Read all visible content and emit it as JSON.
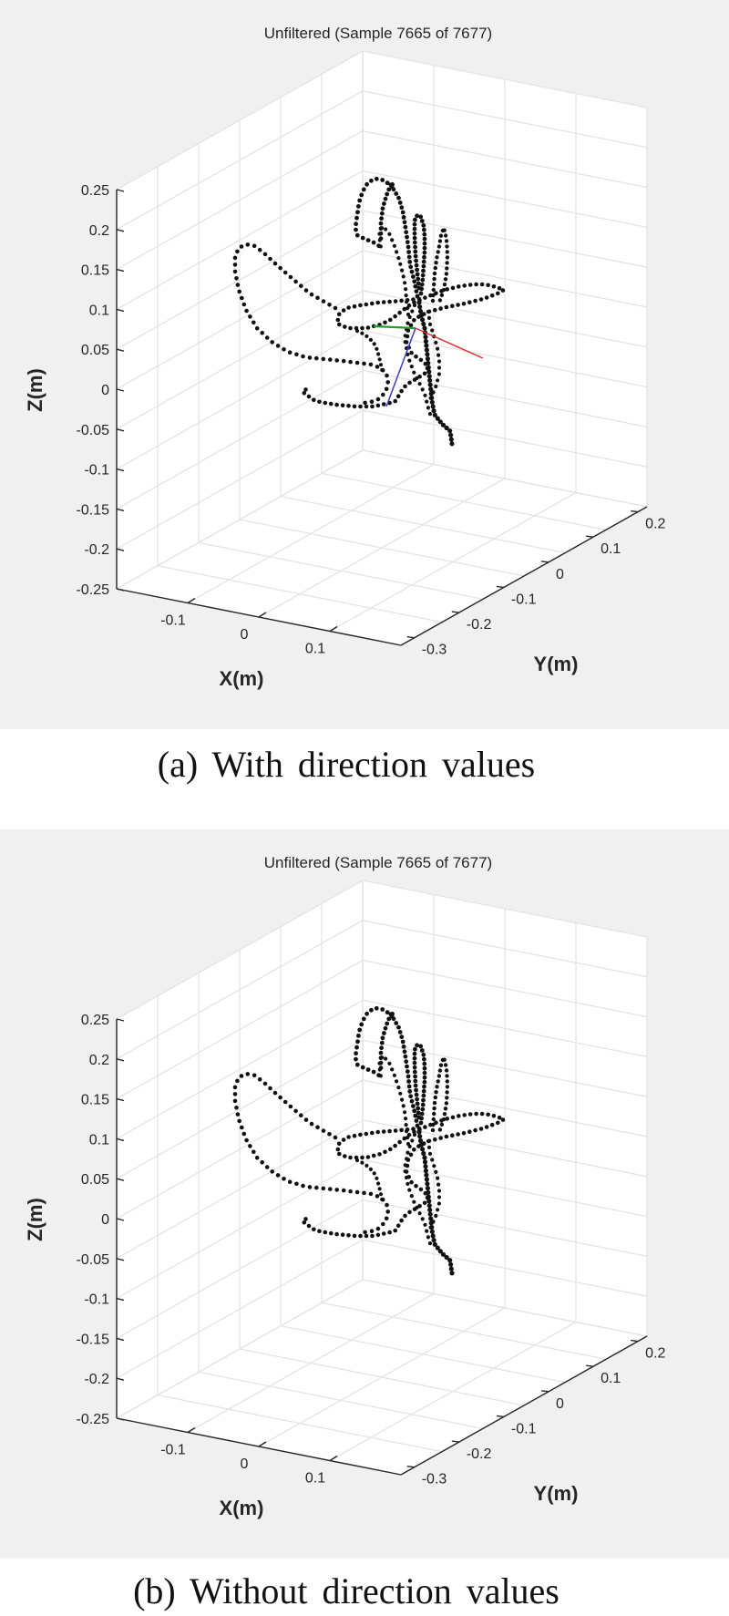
{
  "colors": {
    "figure_bg": "#f0f0f0",
    "axes_bg": "#ffffff",
    "grid": "#e4e4e4",
    "axis_line": "#262626",
    "points": "#111111",
    "dir_x": "#e03030",
    "dir_y": "#2a9a2a",
    "dir_z": "#3a3ad8"
  },
  "figures": [
    {
      "caption": "(a)  With  direction  values",
      "chart_data": {
        "type": "scatter",
        "title": "Unfiltered (Sample 7665 of 7677)",
        "xlabel": "X(m)",
        "ylabel": "Y(m)",
        "zlabel": "Z(m)",
        "xlim": [
          -0.15,
          0.15
        ],
        "ylim": [
          -0.35,
          0.2
        ],
        "zlim": [
          -0.25,
          0.25
        ],
        "x_ticks": [
          "-0.1",
          "0",
          "0.1"
        ],
        "y_ticks": [
          "-0.3",
          "-0.2",
          "-0.1",
          "0",
          "0.1",
          "0.2"
        ],
        "z_ticks": [
          "-0.25",
          "-0.2",
          "-0.15",
          "-0.1",
          "-0.05",
          "0",
          "0.05",
          "0.1",
          "0.15",
          "0.2",
          "0.25"
        ],
        "grid": true,
        "show_direction": true
      }
    },
    {
      "caption": "(b)  Without  direction  values",
      "chart_data": {
        "type": "scatter",
        "title": "Unfiltered (Sample 7665 of 7677)",
        "xlabel": "X(m)",
        "ylabel": "Y(m)",
        "zlabel": "Z(m)",
        "xlim": [
          -0.15,
          0.15
        ],
        "ylim": [
          -0.35,
          0.2
        ],
        "zlim": [
          -0.25,
          0.25
        ],
        "x_ticks": [
          "-0.1",
          "0",
          "0.1"
        ],
        "y_ticks": [
          "-0.3",
          "-0.2",
          "-0.1",
          "0",
          "0.1",
          "0.2"
        ],
        "z_ticks": [
          "-0.25",
          "-0.2",
          "-0.15",
          "-0.1",
          "-0.05",
          "0",
          "0.05",
          "0.1",
          "0.15",
          "0.2",
          "0.25"
        ],
        "grid": true,
        "show_direction": false
      }
    }
  ]
}
